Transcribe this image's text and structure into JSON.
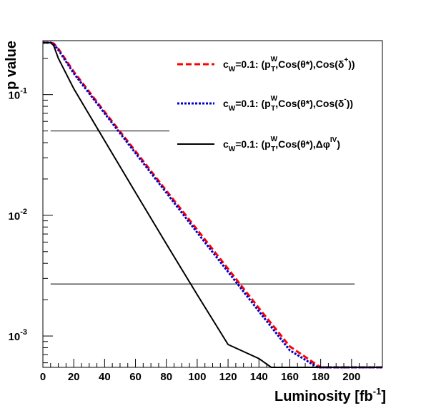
{
  "chart_data": {
    "type": "line",
    "xlabel": "Luminosity [fb",
    "xlabel_sup": "-1",
    "xlabel_end": "]",
    "ylabel": "p value",
    "xlim": [
      0,
      220
    ],
    "ylim": [
      0.00055,
      0.28
    ],
    "yscale": "log",
    "grid": false,
    "legend_position": "top-right",
    "x_ticks": [
      0,
      20,
      40,
      60,
      80,
      100,
      120,
      140,
      160,
      180,
      200
    ],
    "x_tick_labels": [
      "0",
      "20",
      "40",
      "60",
      "80",
      "100",
      "120",
      "140",
      "160",
      "180",
      "200"
    ],
    "y_ticks": [
      {
        "value": 0.1,
        "base": "10",
        "exp": "-1"
      },
      {
        "value": 0.01,
        "base": "10",
        "exp": "-2"
      },
      {
        "value": 0.001,
        "base": "10",
        "exp": "-3"
      }
    ],
    "series": [
      {
        "label_parts": {
          "pre": "c",
          "sub1": "W",
          "mid": "=0.1: (p",
          "sup2": "W",
          "sub2": "T",
          "post": ",Cos(θ*),Cos(δ",
          "sup3": "+",
          "end": "))"
        },
        "color": "#ff0000",
        "style": "dashed",
        "x": [
          0,
          5,
          7,
          10,
          20,
          40,
          60,
          80,
          100,
          120,
          140,
          160,
          180,
          220
        ],
        "y": [
          0.27,
          0.27,
          0.265,
          0.24,
          0.155,
          0.072,
          0.034,
          0.016,
          0.0076,
          0.0036,
          0.0017,
          0.00082,
          0.00055,
          0.00055
        ]
      },
      {
        "label_parts": {
          "pre": "c",
          "sub1": "W",
          "mid": "=0.1: (p",
          "sup2": "W",
          "sub2": "T",
          "post": ",Cos(θ*),Cos(δ",
          "sup3": "-",
          "end": "))"
        },
        "color": "#0000cc",
        "style": "dotted",
        "x": [
          0,
          5,
          7,
          10,
          20,
          40,
          60,
          80,
          100,
          120,
          140,
          160,
          178,
          220
        ],
        "y": [
          0.27,
          0.27,
          0.262,
          0.235,
          0.15,
          0.07,
          0.0328,
          0.0154,
          0.0072,
          0.0034,
          0.0016,
          0.00076,
          0.00055,
          0.00055
        ]
      },
      {
        "label_parts": {
          "pre": "c",
          "sub1": "W",
          "mid": "=0.1: (p",
          "sup2": "W",
          "sub2": "T",
          "post": ",Cos(θ*),Δφ",
          "sup3": "IV",
          "end": ")"
        },
        "color": "#000000",
        "style": "solid",
        "x": [
          0,
          5,
          7,
          10,
          20,
          40,
          60,
          80,
          100,
          120,
          140,
          148,
          220
        ],
        "y": [
          0.27,
          0.27,
          0.255,
          0.2,
          0.112,
          0.0415,
          0.0155,
          0.0058,
          0.0022,
          0.00085,
          0.00065,
          0.00055,
          0.00055
        ]
      }
    ],
    "reference_lines": [
      {
        "y": 0.05,
        "x_start": 5,
        "x_end": 82
      },
      {
        "y": 0.0027,
        "x_start": 5,
        "x_end": 202
      }
    ]
  }
}
